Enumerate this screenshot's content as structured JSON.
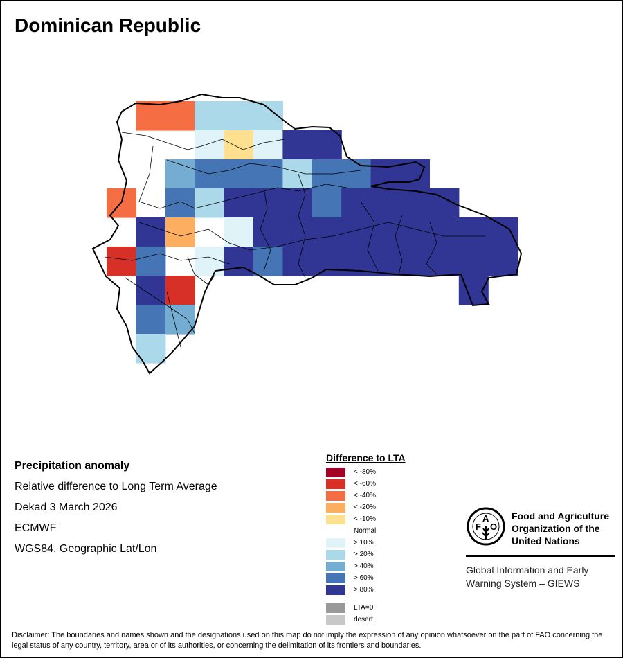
{
  "title": "Dominican Republic",
  "info": {
    "heading": "Precipitation anomaly",
    "lines": [
      "Relative difference to Long Term Average",
      "Dekad 3 March 2026",
      "ECMWF",
      "WGS84, Geographic Lat/Lon"
    ]
  },
  "legend": {
    "title": "Difference to LTA",
    "items": [
      {
        "label": "< -80%",
        "color": "#a50026"
      },
      {
        "label": "< -60%",
        "color": "#d73027"
      },
      {
        "label": "< -40%",
        "color": "#f46d43"
      },
      {
        "label": "< -20%",
        "color": "#fdae61"
      },
      {
        "label": "< -10%",
        "color": "#fee090"
      },
      {
        "label": "Normal",
        "color": "#ffffff"
      },
      {
        "label": "> 10%",
        "color": "#e0f3f8"
      },
      {
        "label": "> 20%",
        "color": "#abd9e9"
      },
      {
        "label": "> 40%",
        "color": "#74add1"
      },
      {
        "label": "> 60%",
        "color": "#4575b4"
      },
      {
        "label": "> 80%",
        "color": "#313695"
      }
    ],
    "extra": [
      {
        "label": "LTA=0",
        "color": "#999999"
      },
      {
        "label": "desert",
        "color": "#c8c8c8"
      }
    ]
  },
  "anomaly_grid": {
    "classes": {
      "R": "< -60%",
      "O": "< -40%",
      "A": "< -20%",
      "Y": "< -10%",
      "W": "Normal",
      "L1": "> 10%",
      "L2": "> 20%",
      "L4": "> 40%",
      "L6": "> 60%",
      "L8": "> 80%"
    },
    "rows": [
      [
        "-",
        "O",
        "O",
        "L2",
        "L2",
        "L2",
        "-",
        "-",
        "-",
        "-",
        "-",
        "-",
        "-",
        "-"
      ],
      [
        "-",
        "W",
        "W",
        "L1",
        "Y",
        "L1",
        "L8",
        "L8",
        "-",
        "-",
        "-",
        "-",
        "-",
        "-"
      ],
      [
        "-",
        "W",
        "L4",
        "L6",
        "L6",
        "L6",
        "L2",
        "L6",
        "L6",
        "L8",
        "L8",
        "-",
        "-",
        "-"
      ],
      [
        "O",
        "W",
        "L6",
        "L2",
        "L8",
        "L8",
        "L8",
        "L6",
        "L8",
        "L8",
        "L8",
        "L8",
        "-",
        "-"
      ],
      [
        "-",
        "L8",
        "A",
        "W",
        "L1",
        "L8",
        "L8",
        "L8",
        "L8",
        "L8",
        "L8",
        "L8",
        "L8",
        "L8"
      ],
      [
        "R",
        "L6",
        "W",
        "L1",
        "L8",
        "L6",
        "L8",
        "L8",
        "L8",
        "L8",
        "L8",
        "L8",
        "L8",
        "L8"
      ],
      [
        "-",
        "L8",
        "R",
        "-",
        "-",
        "-",
        "-",
        "-",
        "-",
        "-",
        "-",
        "-",
        "L8",
        "-"
      ],
      [
        "-",
        "L6",
        "L4",
        "-",
        "-",
        "-",
        "-",
        "-",
        "-",
        "-",
        "-",
        "-",
        "-",
        "-"
      ],
      [
        "-",
        "L2",
        "-",
        "-",
        "-",
        "-",
        "-",
        "-",
        "-",
        "-",
        "-",
        "-",
        "-",
        "-"
      ]
    ]
  },
  "logo": {
    "org": "Food and Agriculture Organization of the United Nations",
    "letters": "FAO",
    "motto": "FIAT PANIS",
    "system": "Global Information and Early Warning System – GIEWS"
  },
  "disclaimer": "Disclaimer: The boundaries and names shown and the designations used on this map do not imply the expression of any opinion whatsoever on the part of FAO concerning the legal status of any country, territory, area or of its authorities, or concerning the delimitation of its frontiers and boundaries."
}
